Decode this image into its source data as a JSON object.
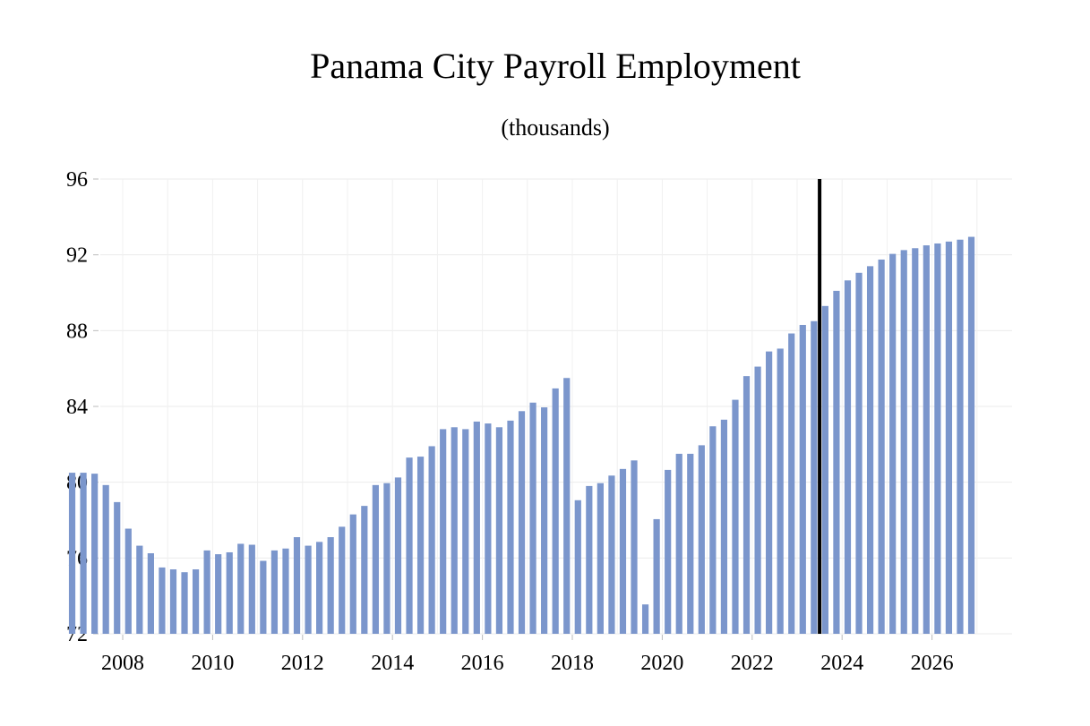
{
  "chart_data": {
    "type": "bar",
    "title": "Panama City Payroll Employment",
    "subtitle": "(thousands)",
    "xlabel": "",
    "ylabel": "",
    "ylim": [
      72,
      96
    ],
    "yticks": [
      "72",
      "76",
      "80",
      "84",
      "88",
      "92",
      "96"
    ],
    "xticks": [
      "2008",
      "2010",
      "2012",
      "2014",
      "2016",
      "2018",
      "2020",
      "2022",
      "2024",
      "2026"
    ],
    "grid": true,
    "bar_color": "#7b96cc",
    "forecast_line_color": "#000000",
    "forecast_start": "2024 Q1",
    "categories": [
      "2007 Q2",
      "2007 Q3",
      "2007 Q4",
      "2008 Q1",
      "2008 Q2",
      "2008 Q3",
      "2008 Q4",
      "2009 Q1",
      "2009 Q2",
      "2009 Q3",
      "2009 Q4",
      "2010 Q1",
      "2010 Q2",
      "2010 Q3",
      "2010 Q4",
      "2011 Q1",
      "2011 Q2",
      "2011 Q3",
      "2011 Q4",
      "2012 Q1",
      "2012 Q2",
      "2012 Q3",
      "2012 Q4",
      "2013 Q1",
      "2013 Q2",
      "2013 Q3",
      "2013 Q4",
      "2014 Q1",
      "2014 Q2",
      "2014 Q3",
      "2014 Q4",
      "2015 Q1",
      "2015 Q2",
      "2015 Q3",
      "2015 Q4",
      "2016 Q1",
      "2016 Q2",
      "2016 Q3",
      "2016 Q4",
      "2017 Q1",
      "2017 Q2",
      "2017 Q3",
      "2017 Q4",
      "2018 Q1",
      "2018 Q2",
      "2018 Q3",
      "2018 Q4",
      "2019 Q1",
      "2019 Q2",
      "2019 Q3",
      "2019 Q4",
      "2020 Q1",
      "2020 Q2",
      "2020 Q3",
      "2020 Q4",
      "2021 Q1",
      "2021 Q2",
      "2021 Q3",
      "2021 Q4",
      "2022 Q1",
      "2022 Q2",
      "2022 Q3",
      "2022 Q4",
      "2023 Q1",
      "2023 Q2",
      "2023 Q3",
      "2023 Q4",
      "2024 Q1",
      "2024 Q2",
      "2024 Q3",
      "2024 Q4",
      "2025 Q1",
      "2025 Q2",
      "2025 Q3",
      "2025 Q4",
      "2026 Q1",
      "2026 Q2",
      "2026 Q3",
      "2026 Q4",
      "2027 Q1",
      "2027 Q2"
    ],
    "values": [
      80.5,
      80.5,
      80.45,
      79.85,
      78.95,
      77.55,
      76.65,
      76.25,
      75.5,
      75.4,
      75.25,
      75.4,
      76.4,
      76.2,
      76.3,
      76.75,
      76.7,
      75.85,
      76.4,
      76.5,
      77.1,
      76.65,
      76.85,
      77.1,
      77.65,
      78.3,
      78.75,
      79.85,
      79.95,
      80.25,
      81.3,
      81.35,
      81.9,
      82.8,
      82.9,
      82.8,
      83.2,
      83.1,
      82.9,
      83.25,
      83.75,
      84.2,
      83.95,
      84.95,
      85.5,
      79.05,
      79.8,
      79.95,
      80.35,
      80.7,
      81.15,
      73.55,
      78.05,
      80.65,
      81.5,
      81.5,
      81.95,
      82.95,
      83.3,
      84.35,
      85.6,
      86.1,
      86.9,
      87.05,
      87.85,
      88.3,
      88.5,
      89.3,
      90.1,
      90.65,
      91.05,
      91.4,
      91.75,
      92.05,
      92.25,
      92.35,
      92.5,
      92.6,
      92.7,
      92.8,
      92.95
    ]
  }
}
